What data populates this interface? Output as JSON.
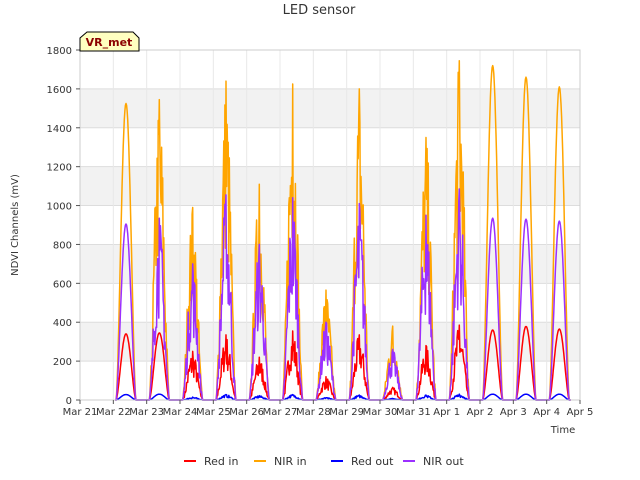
{
  "chart_data": {
    "type": "line",
    "title": "LED sensor",
    "xlabel": "Time",
    "ylabel": "NDVI Channels (mV)",
    "ylim": [
      0,
      1800
    ],
    "y_ticks": [
      0,
      200,
      400,
      600,
      800,
      1000,
      1200,
      1400,
      1600,
      1800
    ],
    "x_ticks": [
      "Mar 21",
      "Mar 22",
      "Mar 23",
      "Mar 24",
      "Mar 25",
      "Mar 26",
      "Mar 27",
      "Mar 28",
      "Mar 29",
      "Mar 30",
      "Mar 31",
      "Apr 1",
      "Apr 2",
      "Apr 3",
      "Apr 4",
      "Apr 5"
    ],
    "tag": "VR_met",
    "grid": "horizontal bands",
    "legend_position": "bottom",
    "days": [
      "Mar 21",
      "Mar 22",
      "Mar 23",
      "Mar 24",
      "Mar 25",
      "Mar 26",
      "Mar 27",
      "Mar 28",
      "Mar 29",
      "Mar 30",
      "Mar 31",
      "Apr 1",
      "Apr 2",
      "Apr 3",
      "Apr 4"
    ],
    "series": [
      {
        "name": "Red in",
        "color": "#ff0000",
        "daily_peak": [
          0,
          340,
          345,
          250,
          335,
          220,
          355,
          120,
          335,
          65,
          280,
          385,
          360,
          378,
          365
        ],
        "noisy": [
          false,
          false,
          false,
          true,
          true,
          true,
          true,
          true,
          true,
          true,
          true,
          true,
          false,
          false,
          false
        ]
      },
      {
        "name": "NIR in",
        "color": "#ffa500",
        "daily_peak": [
          0,
          1525,
          1545,
          990,
          1640,
          1110,
          1625,
          565,
          1600,
          380,
          1350,
          1745,
          1720,
          1660,
          1610
        ],
        "noisy": [
          false,
          false,
          true,
          true,
          true,
          true,
          true,
          true,
          true,
          true,
          true,
          true,
          false,
          false,
          false
        ]
      },
      {
        "name": "Red out",
        "color": "#0000ff",
        "daily_peak": [
          0,
          28,
          30,
          15,
          28,
          22,
          28,
          12,
          25,
          8,
          25,
          30,
          30,
          30,
          30
        ],
        "noisy": [
          false,
          false,
          false,
          true,
          true,
          true,
          true,
          true,
          true,
          true,
          true,
          true,
          false,
          false,
          false
        ]
      },
      {
        "name": "NIR out",
        "color": "#9b30ff",
        "daily_peak": [
          0,
          905,
          935,
          700,
          1055,
          800,
          1040,
          400,
          1010,
          260,
          950,
          1085,
          935,
          930,
          920
        ],
        "noisy": [
          false,
          false,
          true,
          true,
          true,
          true,
          true,
          true,
          true,
          true,
          true,
          true,
          false,
          false,
          false
        ]
      }
    ]
  }
}
